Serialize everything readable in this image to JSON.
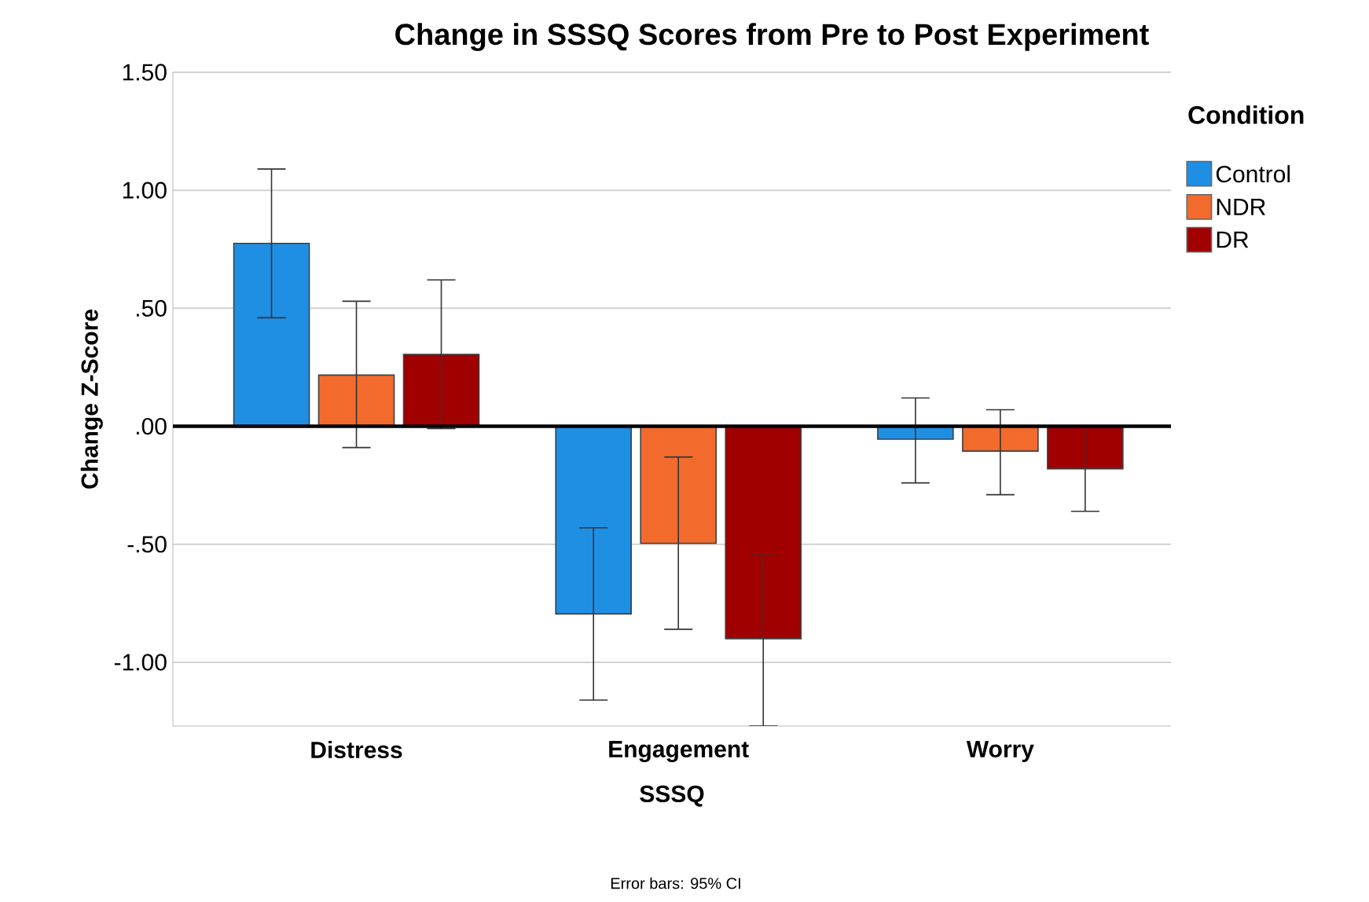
{
  "chart_data": {
    "type": "bar",
    "title": "Change in SSSQ Scores from Pre to Post Experiment",
    "xlabel": "SSSQ",
    "ylabel": "Change Z-Score",
    "legend_title": "Condition",
    "categories": [
      "Distress",
      "Engagement",
      "Worry"
    ],
    "series": [
      {
        "name": "Control",
        "color": "#1e8fe3",
        "values": [
          0.775,
          -0.795,
          -0.055
        ],
        "errors": [
          [
            0.46,
            1.09
          ],
          [
            -1.16,
            -0.43
          ],
          [
            -0.24,
            0.12
          ]
        ]
      },
      {
        "name": "NDR",
        "color": "#f26b2c",
        "values": [
          0.217,
          -0.496,
          -0.105
        ],
        "errors": [
          [
            -0.09,
            0.53
          ],
          [
            -0.86,
            -0.13
          ],
          [
            -0.29,
            0.07
          ]
        ]
      },
      {
        "name": "DR",
        "color": "#a00000",
        "values": [
          0.305,
          -0.9,
          -0.18
        ],
        "errors": [
          [
            -0.01,
            0.62
          ],
          [
            -1.27,
            -0.54
          ],
          [
            -0.36,
            0.0
          ]
        ]
      }
    ],
    "ylim": [
      -1.27,
      1.5
    ],
    "yticks": [
      {
        "value": 1.5,
        "label": "1.50"
      },
      {
        "value": 1.0,
        "label": "1.00"
      },
      {
        "value": 0.5,
        "label": ".50"
      },
      {
        "value": 0.0,
        "label": ".00"
      },
      {
        "value": -0.5,
        "label": "-.50"
      },
      {
        "value": -1.0,
        "label": "-1.00"
      }
    ],
    "ref_lines": [
      {
        "axis": "y",
        "value": 0,
        "color": "#000000"
      }
    ],
    "grid": "y",
    "legend": "right",
    "annotations": [
      "Error bars: 95% CI"
    ]
  }
}
